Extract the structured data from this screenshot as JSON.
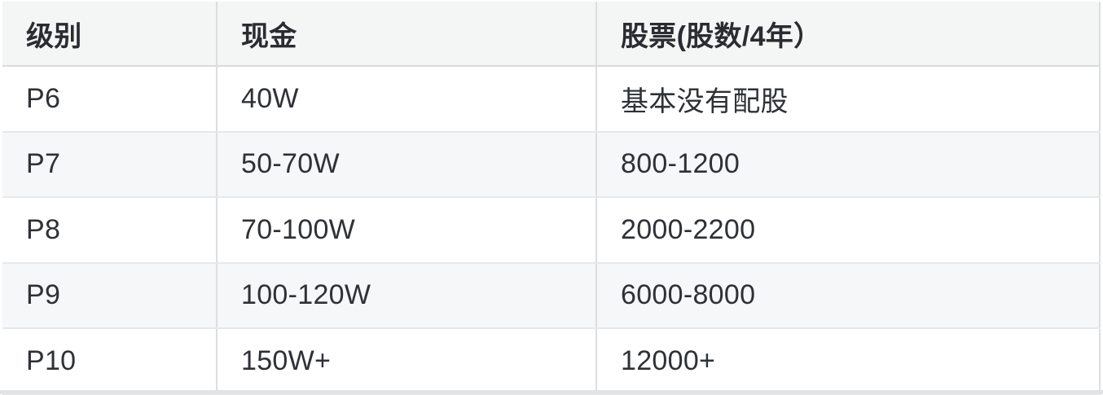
{
  "table": {
    "columns": [
      {
        "key": "level",
        "label": "级别"
      },
      {
        "key": "cash",
        "label": "现金"
      },
      {
        "key": "stock",
        "label": "股票(股数/4年）"
      }
    ],
    "rows": [
      {
        "level": "P6",
        "cash": "40W",
        "stock": "基本没有配股"
      },
      {
        "level": "P7",
        "cash": "50-70W",
        "stock": "800-1200"
      },
      {
        "level": "P8",
        "cash": "70-100W",
        "stock": "2000-2200"
      },
      {
        "level": "P9",
        "cash": "100-120W",
        "stock": "6000-8000"
      },
      {
        "level": "P10",
        "cash": "150W+",
        "stock": "12000+"
      }
    ]
  },
  "colors": {
    "header_bg": "#f4f5f5",
    "alt_row_bg": "#f6f7f9",
    "row_bg": "#ffffff",
    "header_border": "#d9dbdd",
    "row_border": "#e6e8ea",
    "column_divider": "#dcdee0",
    "bottom_bar": "#e1e3e4",
    "text": "#2e3135"
  }
}
